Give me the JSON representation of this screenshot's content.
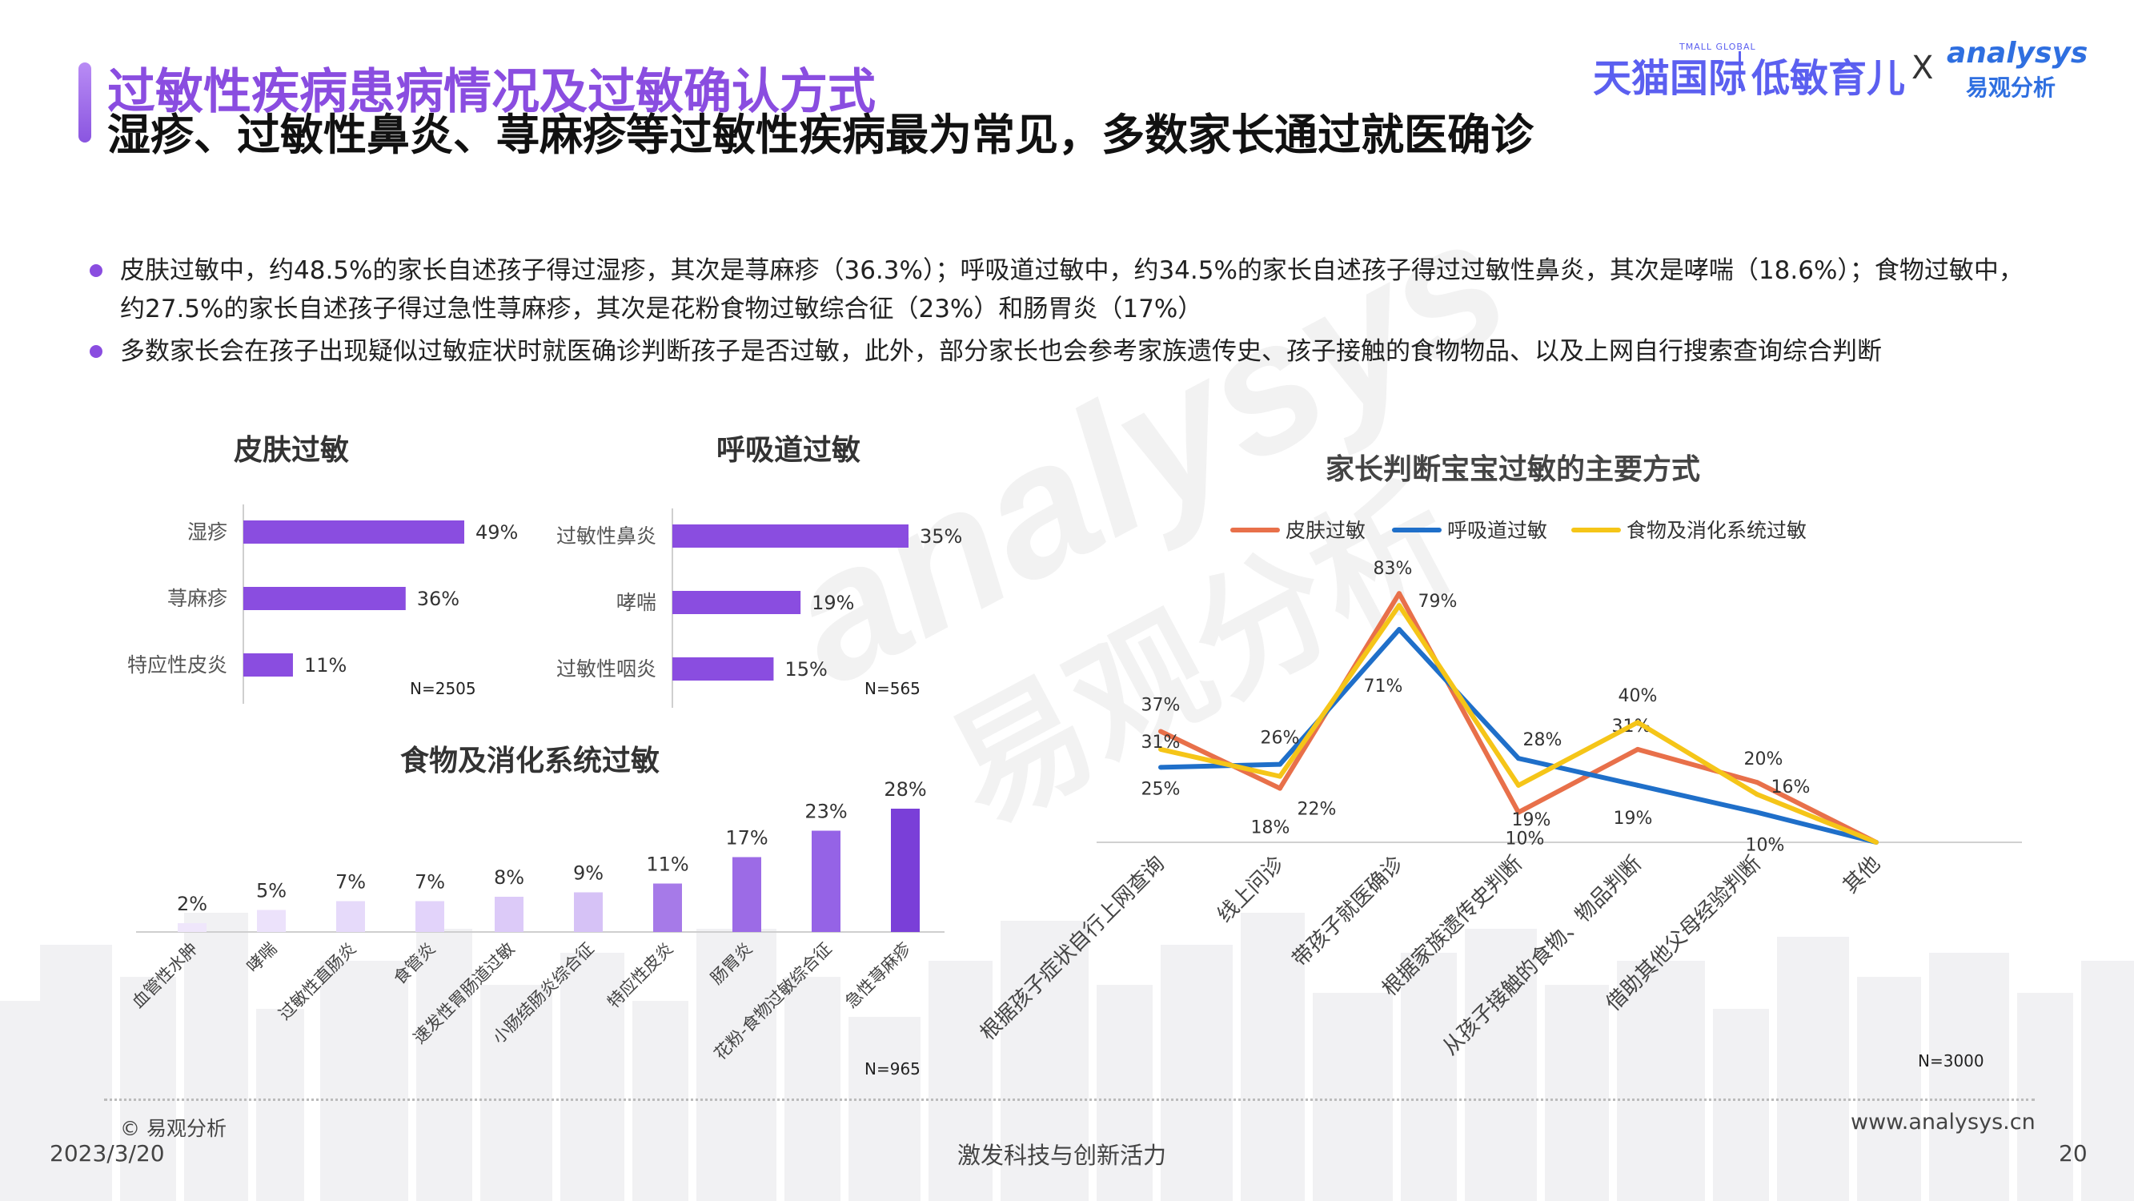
{
  "header": {
    "title_line1": "过敏性疾病患病情况及过敏确认方式",
    "title_line2": "湿疹、过敏性鼻炎、荨麻疹等过敏性疾病最为常见，多数家长通过就医确诊"
  },
  "brand": {
    "tmall_small": "TMALL GLOBAL",
    "tmall": "天猫国际",
    "low_allergy": "低敏育儿",
    "x": "X",
    "analysys": "analysys",
    "analysys_cn": "易观分析"
  },
  "bullets": [
    "皮肤过敏中，约48.5%的家长自述孩子得过湿疹，其次是荨麻疹（36.3%）；呼吸道过敏中，约34.5%的家长自述孩子得过过敏性鼻炎，其次是哮喘（18.6%）；食物过敏中，约27.5%的家长自述孩子得过急性荨麻疹，其次是花粉食物过敏综合征（23%）和肠胃炎（17%）",
    "多数家长会在孩子出现疑似过敏症状时就医确诊判断孩子是否过敏，此外，部分家长也会参考家族遗传史、孩子接触的食物物品、以及上网自行搜索查询综合判断"
  ],
  "watermark": {
    "en": "analysys",
    "cn": "易观分析"
  },
  "colors": {
    "purple": "#8a4de0",
    "skin_line": "#e8704a",
    "resp_line": "#1f6fc9",
    "food_line": "#f5c518"
  },
  "chart_data": [
    {
      "id": "skin",
      "type": "bar",
      "orientation": "horizontal",
      "title": "皮肤过敏",
      "categories": [
        "湿疹",
        "荨麻疹",
        "特应性皮炎"
      ],
      "values": [
        49,
        36,
        11
      ],
      "value_labels": [
        "49%",
        "36%",
        "11%"
      ],
      "note": "N=2505",
      "color": "#8a4de0"
    },
    {
      "id": "resp",
      "type": "bar",
      "orientation": "horizontal",
      "title": "呼吸道过敏",
      "categories": [
        "过敏性鼻炎",
        "哮喘",
        "过敏性咽炎"
      ],
      "values": [
        35,
        19,
        15
      ],
      "value_labels": [
        "35%",
        "19%",
        "15%"
      ],
      "note": "N=565",
      "color": "#8a4de0"
    },
    {
      "id": "food",
      "type": "bar",
      "orientation": "vertical",
      "title": "食物及消化系统过敏",
      "categories": [
        "血管性水肿",
        "哮喘",
        "过敏性直肠炎",
        "食管炎",
        "速发性胃肠道过敏",
        "小肠结肠炎综合征",
        "特应性皮炎",
        "肠胃炎",
        "花粉-食物过敏综合征",
        "急性荨麻疹"
      ],
      "values": [
        2,
        5,
        7,
        7,
        8,
        9,
        11,
        17,
        23,
        28
      ],
      "value_labels": [
        "2%",
        "5%",
        "7%",
        "7%",
        "8%",
        "9%",
        "11%",
        "17%",
        "23%",
        "28%"
      ],
      "bar_colors": [
        "#efe6fb",
        "#ece2fb",
        "#e6dafa",
        "#e2d3fa",
        "#dccaf8",
        "#d6c2f6",
        "#a67ae8",
        "#9c6be6",
        "#9563e6",
        "#7a3fd8"
      ],
      "note": "N=965"
    },
    {
      "id": "method",
      "type": "line",
      "title": "家长判断宝宝过敏的主要方式",
      "categories": [
        "根据孩子症状自行上网查询",
        "线上问诊",
        "带孩子就医确诊",
        "根据家族遗传史判断",
        "从孩子接触的食物、物品判断",
        "借助其他父母经验判断",
        "其他"
      ],
      "ylim": [
        0,
        90
      ],
      "series": [
        {
          "name": "皮肤过敏",
          "color": "#e8704a",
          "values": [
            37,
            18,
            83,
            10,
            31,
            20,
            0
          ],
          "labels": [
            "37%",
            "18%",
            "83%",
            "10%",
            "31%",
            "20%",
            ""
          ]
        },
        {
          "name": "呼吸道过敏",
          "color": "#1f6fc9",
          "values": [
            25,
            26,
            71,
            28,
            19,
            10,
            0
          ],
          "labels": [
            "25%",
            "26%",
            "71%",
            "28%",
            "19%",
            "10%",
            ""
          ]
        },
        {
          "name": "食物及消化系统过敏",
          "color": "#f5c518",
          "values": [
            31,
            22,
            79,
            19,
            40,
            16,
            0
          ],
          "labels": [
            "31%",
            "22%",
            "79%",
            "19%",
            "40%",
            "16%",
            ""
          ]
        }
      ],
      "legend_position": "top",
      "note": "N=3000"
    }
  ],
  "footer": {
    "copyright": "© 易观分析",
    "date": "2023/3/20",
    "slogan": "激发科技与创新活力",
    "url": "www.analysys.cn",
    "page": "20"
  }
}
